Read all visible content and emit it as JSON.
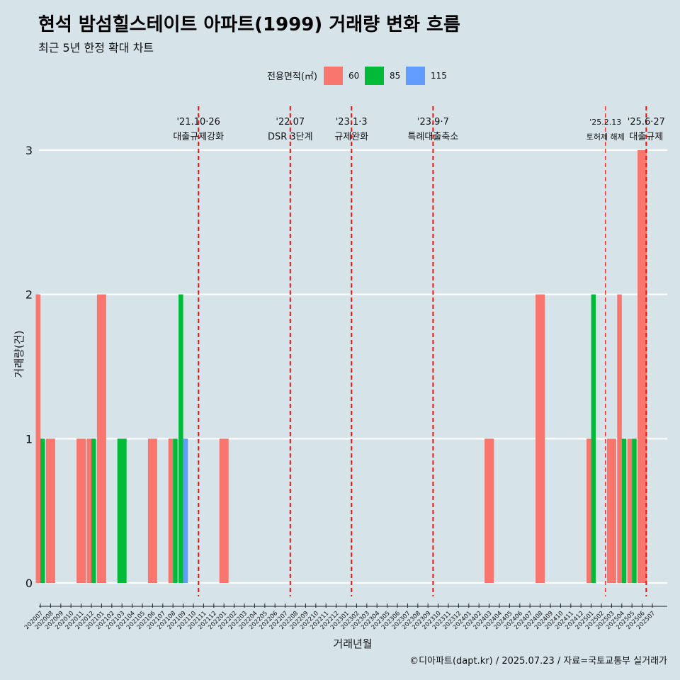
{
  "title": "현석 밤섬힐스테이트 아파트(1999) 거래량 변화 흐름",
  "subtitle": "최근 5년 한정 확대 차트",
  "caption": "©디아파트(dapt.kr) / 2025.07.23 / 자료=국토교통부 실거래가",
  "chart_data": {
    "type": "bar",
    "xlabel": "거래년월",
    "ylabel": "거래량(건)",
    "ylim": [
      0,
      3
    ],
    "yticks": [
      0,
      1,
      2,
      3
    ],
    "legend": {
      "title": "전용면적(㎡)",
      "placement": "top",
      "entries": [
        {
          "name": "60",
          "color": "#f8766d"
        },
        {
          "name": "85",
          "color": "#00ba38"
        },
        {
          "name": "115",
          "color": "#619cff"
        }
      ]
    },
    "categories": [
      "202007",
      "202008",
      "202009",
      "202010",
      "202011",
      "202012",
      "202101",
      "202102",
      "202103",
      "202104",
      "202105",
      "202106",
      "202107",
      "202108",
      "202109",
      "202110",
      "202111",
      "202112",
      "202201",
      "202202",
      "202203",
      "202204",
      "202205",
      "202206",
      "202207",
      "202208",
      "202209",
      "202210",
      "202211",
      "202212",
      "202301",
      "202302",
      "202303",
      "202304",
      "202305",
      "202306",
      "202307",
      "202308",
      "202309",
      "202310",
      "202311",
      "202312",
      "202401",
      "202402",
      "202403",
      "202404",
      "202405",
      "202406",
      "202407",
      "202408",
      "202409",
      "202410",
      "202411",
      "202412",
      "202501",
      "202502",
      "202503",
      "202504",
      "202505",
      "202506",
      "202507"
    ],
    "series": [
      {
        "name": "60",
        "color": "#f8766d",
        "values": [
          2,
          1,
          0,
          0,
          1,
          1,
          2,
          0,
          0,
          0,
          0,
          1,
          0,
          1,
          0,
          0,
          0,
          0,
          1,
          0,
          0,
          0,
          0,
          0,
          0,
          0,
          0,
          0,
          0,
          0,
          0,
          0,
          0,
          0,
          0,
          0,
          0,
          0,
          0,
          0,
          0,
          0,
          0,
          0,
          1,
          0,
          0,
          0,
          0,
          2,
          0,
          0,
          0,
          0,
          1,
          0,
          1,
          2,
          1,
          3,
          0
        ]
      },
      {
        "name": "85",
        "color": "#00ba38",
        "values": [
          1,
          0,
          0,
          0,
          0,
          1,
          0,
          0,
          1,
          0,
          0,
          0,
          0,
          1,
          2,
          0,
          0,
          0,
          0,
          0,
          0,
          0,
          0,
          0,
          0,
          0,
          0,
          0,
          0,
          0,
          0,
          0,
          0,
          0,
          0,
          0,
          0,
          0,
          0,
          0,
          0,
          0,
          0,
          0,
          0,
          0,
          0,
          0,
          0,
          0,
          0,
          0,
          0,
          0,
          2,
          0,
          0,
          1,
          1,
          0,
          0
        ]
      },
      {
        "name": "115",
        "color": "#619cff",
        "values": [
          0,
          0,
          0,
          0,
          0,
          0,
          0,
          0,
          0,
          0,
          0,
          0,
          0,
          0,
          1,
          0,
          0,
          0,
          0,
          0,
          0,
          0,
          0,
          0,
          0,
          0,
          0,
          0,
          0,
          0,
          0,
          0,
          0,
          0,
          0,
          0,
          0,
          0,
          0,
          0,
          0,
          0,
          0,
          0,
          0,
          0,
          0,
          0,
          0,
          0,
          0,
          0,
          0,
          0,
          0,
          0,
          0,
          0,
          0,
          0,
          0
        ]
      }
    ],
    "annotations": [
      {
        "x": 15.5,
        "date": "'21.10·26",
        "label": "대출규제강화"
      },
      {
        "x": 24.5,
        "date": "'22.07",
        "label": "DSR 3단계"
      },
      {
        "x": 30.5,
        "date": "'23.1·3",
        "label": "규제완화"
      },
      {
        "x": 38.5,
        "date": "'23.9·7",
        "label": "특례대출축소"
      },
      {
        "x": 55.4,
        "date": "'25.2.13",
        "label": "토허제 해제",
        "small": true
      },
      {
        "x": 59.4,
        "date": "'25.6·27",
        "label": "대출규제"
      }
    ]
  }
}
